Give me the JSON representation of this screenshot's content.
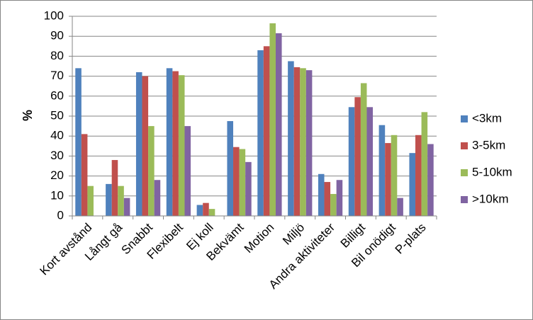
{
  "chart_data": {
    "type": "bar",
    "y_label": "%",
    "categories": [
      "Kort avstånd",
      "Långt gå",
      "Snabbt",
      "Flexibelt",
      "Ej koll",
      "Bekvämt",
      "Motion",
      "Miljö",
      "Andra aktiviteter",
      "Billigt",
      "Bil onödigt",
      "P-plats"
    ],
    "series": [
      {
        "name": "<3km",
        "color": "#4f81bd",
        "values": [
          74,
          16,
          72,
          74,
          5.5,
          47.5,
          83,
          77.5,
          21,
          54.5,
          45.5,
          31.5
        ]
      },
      {
        "name": "3-5km",
        "color": "#c0504d",
        "values": [
          41,
          28,
          70,
          72.5,
          6.5,
          34.5,
          85,
          74.5,
          17,
          59.5,
          36.5,
          40.5
        ]
      },
      {
        "name": "5-10km",
        "color": "#9bbb59",
        "values": [
          15,
          15,
          45,
          70.5,
          3.5,
          33.5,
          96.5,
          74,
          11,
          66.5,
          40.5,
          52
        ]
      },
      {
        "name": ">10km",
        "color": "#8064a2",
        "values": [
          0,
          9,
          18,
          45,
          0,
          27,
          91.5,
          73,
          18,
          54.5,
          9,
          36
        ]
      }
    ],
    "ylim": [
      0,
      100
    ],
    "yticks": [
      0,
      10,
      20,
      30,
      40,
      50,
      60,
      70,
      80,
      90,
      100
    ],
    "grid": true,
    "legend": "right"
  }
}
